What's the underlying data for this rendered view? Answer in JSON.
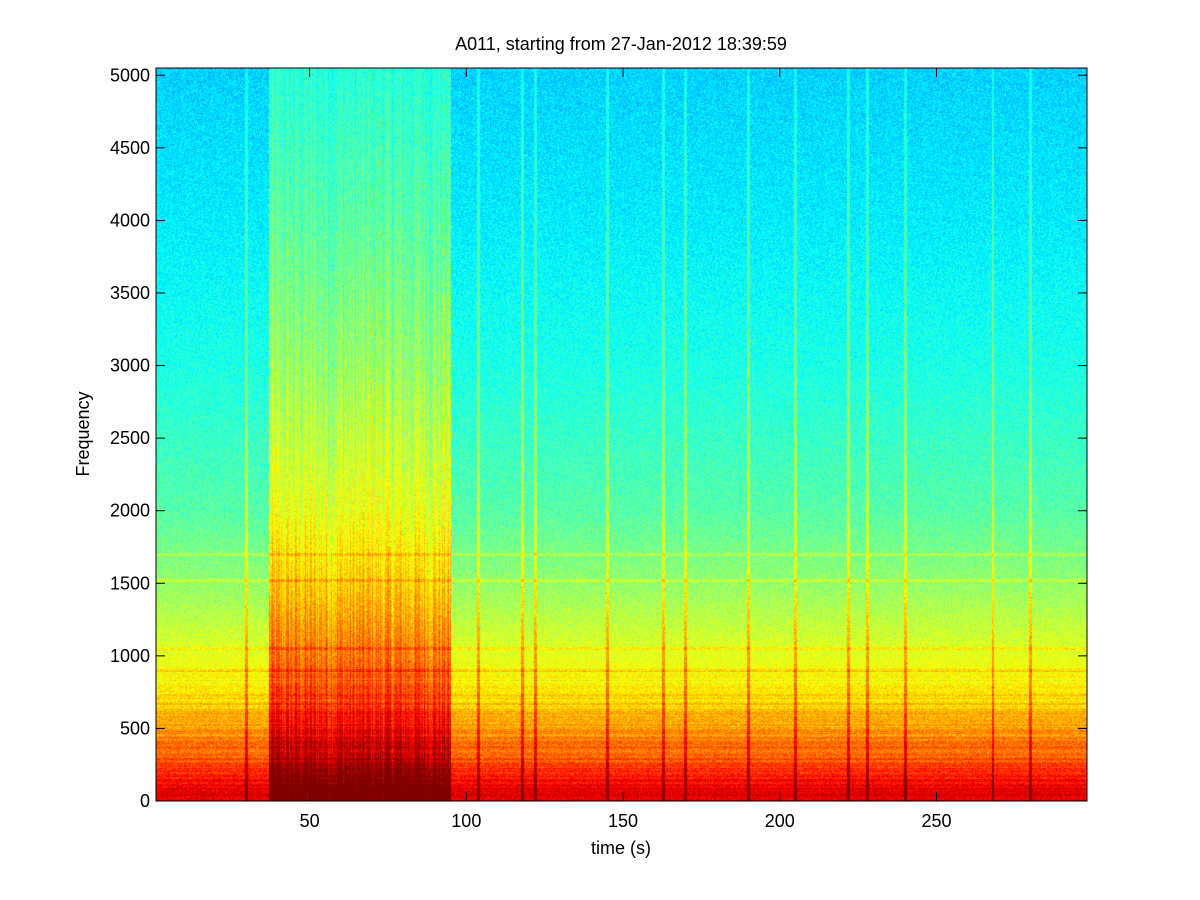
{
  "chart_data": {
    "type": "heatmap",
    "title": "A011, starting from 27-Jan-2012 18:39:59",
    "xlabel": "time (s)",
    "ylabel": "Frequency",
    "xlim": [
      1,
      298
    ],
    "ylim": [
      0,
      5050
    ],
    "xticks": [
      50,
      100,
      150,
      200,
      250
    ],
    "yticks": [
      0,
      500,
      1000,
      1500,
      2000,
      2500,
      3000,
      3500,
      4000,
      4500,
      5000
    ],
    "colormap": "jet",
    "grid": false,
    "high_energy_interval_s": [
      37,
      95
    ],
    "intensity_by_frequency": [
      {
        "freq": 0,
        "level": 0.92
      },
      {
        "freq": 100,
        "level": 0.88
      },
      {
        "freq": 200,
        "level": 0.84
      },
      {
        "freq": 300,
        "level": 0.79
      },
      {
        "freq": 400,
        "level": 0.76
      },
      {
        "freq": 500,
        "level": 0.72
      },
      {
        "freq": 700,
        "level": 0.66
      },
      {
        "freq": 1000,
        "level": 0.6
      },
      {
        "freq": 1500,
        "level": 0.52
      },
      {
        "freq": 2000,
        "level": 0.46
      },
      {
        "freq": 3000,
        "level": 0.4
      },
      {
        "freq": 4000,
        "level": 0.36
      },
      {
        "freq": 5050,
        "level": 0.33
      }
    ],
    "horizontal_lines_hz": [
      900,
      1050,
      1520,
      1700
    ],
    "vertical_transients_s": [
      30,
      104,
      118,
      122,
      145,
      163,
      170,
      190,
      205,
      222,
      228,
      240,
      268,
      280
    ]
  }
}
